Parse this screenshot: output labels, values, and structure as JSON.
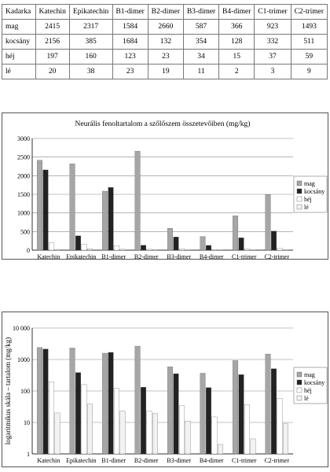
{
  "table": {
    "headers": [
      "Kadarka",
      "Katechin",
      "Epikatechin",
      "B1-dimer",
      "B2-dimer",
      "B3-dimer",
      "B4-dimer",
      "C1-trimer",
      "C2-trimer"
    ],
    "rows": [
      [
        "mag",
        "2415",
        "2317",
        "1584",
        "2660",
        "587",
        "366",
        "923",
        "1493"
      ],
      [
        "kocsány",
        "2156",
        "385",
        "1684",
        "132",
        "354",
        "128",
        "332",
        "511"
      ],
      [
        "héj",
        "197",
        "160",
        "123",
        "23",
        "34",
        "15",
        "37",
        "59"
      ],
      [
        "lé",
        "20",
        "38",
        "23",
        "19",
        "11",
        "2",
        "3",
        "9"
      ]
    ]
  },
  "colors": {
    "mag": "#a6a6a6",
    "kocsany": "#222222",
    "hej": "#ffffff",
    "le": "#f2f2f2",
    "grid": "#888888"
  },
  "chart_data": [
    {
      "type": "bar",
      "title": "Neurális fenoltartalom a szőlőszem összetevőiben (mg/kg)",
      "xlabel": "",
      "ylabel": "",
      "categories": [
        "Katechin",
        "Epikatechin",
        "B1-dimer",
        "B2-dimer",
        "B3-dimer",
        "B4-dimer",
        "C1-trimer",
        "C2-trimer"
      ],
      "series": [
        {
          "name": "mag",
          "values": [
            2415,
            2317,
            1584,
            2660,
            587,
            366,
            923,
            1493
          ]
        },
        {
          "name": "kocsány",
          "values": [
            2156,
            385,
            1684,
            132,
            354,
            128,
            332,
            511
          ]
        },
        {
          "name": "héj",
          "values": [
            197,
            160,
            123,
            23,
            34,
            15,
            37,
            59
          ]
        },
        {
          "name": "lé",
          "values": [
            20,
            38,
            23,
            19,
            11,
            2,
            3,
            9
          ]
        }
      ],
      "ylim": [
        0,
        3000
      ],
      "yticks": [
        0,
        500,
        1000,
        1500,
        2000,
        2500,
        3000
      ],
      "ytick_labels": [
        "0",
        "500",
        "1000",
        "1500",
        "2000",
        "2500",
        "3000"
      ],
      "scale": "linear",
      "grid": true,
      "legend": "right"
    },
    {
      "type": "bar",
      "title": "",
      "xlabel": "",
      "ylabel": "logaritmikus skála – tartalom (mg/kg)",
      "categories": [
        "Katechin",
        "Epikatechin",
        "B1-dimer",
        "B2-dimer",
        "B3-dimer",
        "B4-dimer",
        "C1-trimer",
        "C2-trimer"
      ],
      "series": [
        {
          "name": "mag",
          "values": [
            2415,
            2317,
            1584,
            2660,
            587,
            366,
            923,
            1493
          ]
        },
        {
          "name": "kocsány",
          "values": [
            2156,
            385,
            1684,
            132,
            354,
            128,
            332,
            511
          ]
        },
        {
          "name": "héj",
          "values": [
            197,
            160,
            123,
            23,
            34,
            15,
            37,
            59
          ]
        },
        {
          "name": "lé",
          "values": [
            20,
            38,
            23,
            19,
            11,
            2,
            3,
            9
          ]
        }
      ],
      "ylim": [
        1,
        10000
      ],
      "yticks": [
        1,
        10,
        100,
        1000,
        10000
      ],
      "ytick_labels": [
        "1",
        "10",
        "100",
        "1000",
        "10 000"
      ],
      "scale": "log",
      "grid": true,
      "legend": "right"
    }
  ]
}
